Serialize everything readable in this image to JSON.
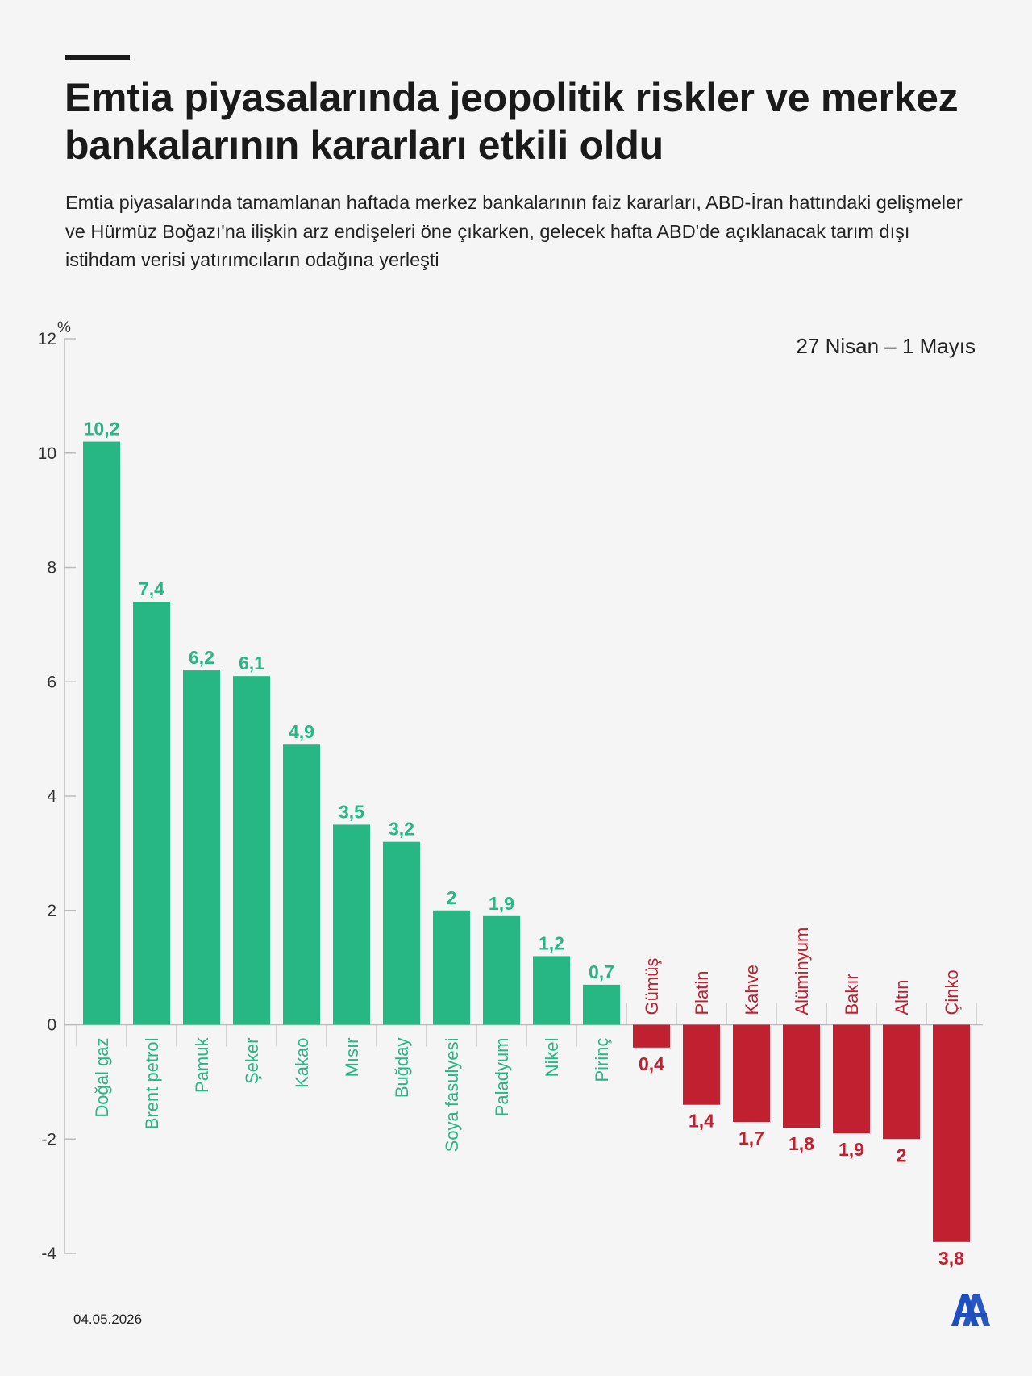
{
  "title": "Emtia piyasalarında jeopolitik riskler ve merkez bankalarının kararları etkili oldu",
  "subtitle": "Emtia piyasalarında tamamlanan haftada merkez bankalarının faiz kararları, ABD-İran hattındaki gelişmeler ve Hürmüz Boğazı'na ilişkin arz endişeleri öne çıkarken, gelecek hafta ABD'de açıklanacak tarım dışı istihdam verisi yatırımcıların odağına yerleşti",
  "date_range": "27 Nisan – 1 Mayıs",
  "footer_date": "04.05.2026",
  "logo": "AA",
  "colors": {
    "positive": "#26b784",
    "negative": "#c0202f",
    "axis": "#bbbbbb"
  },
  "chart_data": {
    "type": "bar",
    "unit": "%",
    "ylim": [
      -4,
      12
    ],
    "yticks": [
      -4,
      -2,
      0,
      2,
      4,
      6,
      8,
      10,
      12
    ],
    "categories": [
      "Doğal gaz",
      "Brent petrol",
      "Pamuk",
      "Şeker",
      "Kakao",
      "Mısır",
      "Buğday",
      "Soya fasulyesi",
      "Paladyum",
      "Nikel",
      "Pirinç",
      "Gümüş",
      "Platin",
      "Kahve",
      "Alüminyum",
      "Bakır",
      "Altın",
      "Çinko"
    ],
    "values": [
      10.2,
      7.4,
      6.2,
      6.1,
      4.9,
      3.5,
      3.2,
      2,
      1.9,
      1.2,
      0.7,
      -0.4,
      -1.4,
      -1.7,
      -1.8,
      -1.9,
      -2,
      -3.8
    ],
    "data_labels": [
      "10,2",
      "7,4",
      "6,2",
      "6,1",
      "4,9",
      "3,5",
      "3,2",
      "2",
      "1,9",
      "1,2",
      "0,7",
      "0,4",
      "1,4",
      "1,7",
      "1,8",
      "1,9",
      "2",
      "3,8"
    ],
    "grid": false
  }
}
